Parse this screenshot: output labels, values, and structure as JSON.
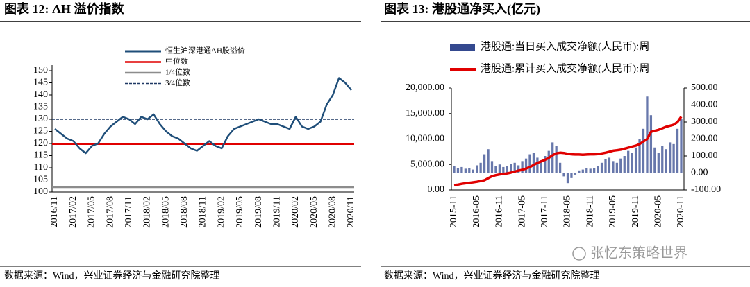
{
  "chart_data": [
    {
      "type": "line",
      "title": "图表 12:  AH 溢价指数",
      "source": "数据来源：Wind，兴业证券经济与金融研究院整理",
      "categories": [
        "2016/11",
        null,
        null,
        "2017/02",
        null,
        null,
        "2017/05",
        null,
        null,
        "2017/08",
        null,
        null,
        "2017/11",
        null,
        null,
        "2018/02",
        null,
        null,
        "2018/05",
        null,
        null,
        "2018/08",
        null,
        null,
        "2018/11",
        null,
        null,
        "2019/02",
        null,
        null,
        "2019/05",
        null,
        null,
        "2019/08",
        null,
        null,
        "2019/11",
        null,
        null,
        "2020/02",
        null,
        null,
        "2020/05",
        null,
        null,
        "2020/08",
        null,
        null,
        "2020/11"
      ],
      "series": [
        {
          "name": "恒生沪深港通AH股溢价",
          "color": "#1f4e79",
          "values": [
            126,
            124,
            122,
            121,
            118,
            116,
            119,
            120,
            124,
            127,
            129,
            131,
            130,
            128,
            131,
            130,
            132,
            128,
            125,
            123,
            122,
            120,
            118,
            117,
            119,
            121,
            119,
            118,
            123,
            126,
            127,
            128,
            129,
            130,
            129,
            128,
            128,
            127,
            126,
            131,
            127,
            126,
            127,
            129,
            136,
            140,
            147,
            145,
            142
          ]
        }
      ],
      "reference_lines": [
        {
          "name": "中位数",
          "value": 119.8,
          "color": "#e00000",
          "style": "solid"
        },
        {
          "name": "1/4位数",
          "value": 102,
          "color": "#8c8c8c",
          "style": "solid"
        },
        {
          "name": "3/4位数",
          "value": 130,
          "color": "#1f3864",
          "style": "dashed"
        }
      ],
      "ylim": [
        100,
        150
      ],
      "yticks": [
        100,
        105,
        110,
        115,
        120,
        125,
        130,
        135,
        140,
        145,
        150
      ]
    },
    {
      "type": "bar_line",
      "title": "图表 13:  港股通净买入(亿元)",
      "source": "数据来源：Wind，兴业证券经济与金融研究院整理",
      "categories": [
        "2015-11",
        null,
        null,
        null,
        null,
        null,
        "2016-05",
        null,
        null,
        null,
        null,
        null,
        "2016-11",
        null,
        null,
        null,
        null,
        null,
        "2017-05",
        null,
        null,
        null,
        null,
        null,
        "2017-11",
        null,
        null,
        null,
        null,
        null,
        "2018-05",
        null,
        null,
        null,
        null,
        null,
        "2018-11",
        null,
        null,
        null,
        null,
        null,
        "2019-05",
        null,
        null,
        null,
        null,
        null,
        "2019-11",
        null,
        null,
        null,
        null,
        null,
        "2020-05",
        null,
        null,
        null,
        null,
        null,
        "2020-11"
      ],
      "series": [
        {
          "name": "港股通:当日买入成交净额(人民币):周",
          "type": "bar",
          "axis": "y2",
          "color": "#34498f",
          "values": [
            40,
            30,
            35,
            25,
            30,
            20,
            45,
            60,
            110,
            140,
            70,
            40,
            50,
            35,
            40,
            55,
            60,
            45,
            70,
            85,
            110,
            120,
            90,
            75,
            100,
            130,
            180,
            160,
            60,
            -20,
            -60,
            -30,
            -10,
            15,
            20,
            30,
            25,
            30,
            40,
            60,
            80,
            90,
            70,
            60,
            85,
            100,
            130,
            120,
            150,
            200,
            260,
            450,
            340,
            150,
            120,
            160,
            140,
            180,
            170,
            260,
            320
          ]
        },
        {
          "name": "港股通:累计买入成交净额(人民币):周",
          "type": "line",
          "color": "#e00000",
          "values": [
            950,
            1050,
            1200,
            1300,
            1400,
            1500,
            1600,
            1750,
            1900,
            2300,
            2700,
            2900,
            3050,
            3150,
            3250,
            3400,
            3600,
            3800,
            3950,
            4200,
            4500,
            4900,
            5300,
            5600,
            5900,
            6300,
            6800,
            7200,
            7300,
            7250,
            7100,
            7000,
            6950,
            6950,
            6900,
            6950,
            7000,
            7000,
            7050,
            7150,
            7300,
            7500,
            7700,
            7800,
            7900,
            8100,
            8300,
            8500,
            8700,
            9000,
            9500,
            10000,
            11400,
            11600,
            11800,
            12100,
            12400,
            12600,
            12800,
            13300,
            14400
          ]
        }
      ],
      "ylim": [
        0,
        20000
      ],
      "yticks": [
        {
          "value": 0,
          "label": "0.00"
        },
        {
          "value": 5000,
          "label": "5,000.00"
        },
        {
          "value": 10000,
          "label": "10,000.00"
        },
        {
          "value": 15000,
          "label": "15,000.00"
        },
        {
          "value": 20000,
          "label": "20,000.00"
        }
      ],
      "y2lim": [
        -100,
        500
      ],
      "y2ticks": [
        {
          "value": -100,
          "label": "-100.00"
        },
        {
          "value": 0,
          "label": "0.00"
        },
        {
          "value": 100,
          "label": "100.00"
        },
        {
          "value": 200,
          "label": "200.00"
        },
        {
          "value": 300,
          "label": "300.00"
        },
        {
          "value": 400,
          "label": "400.00"
        },
        {
          "value": 500,
          "label": "500.00"
        }
      ]
    }
  ],
  "watermark": "张忆东策略世界"
}
